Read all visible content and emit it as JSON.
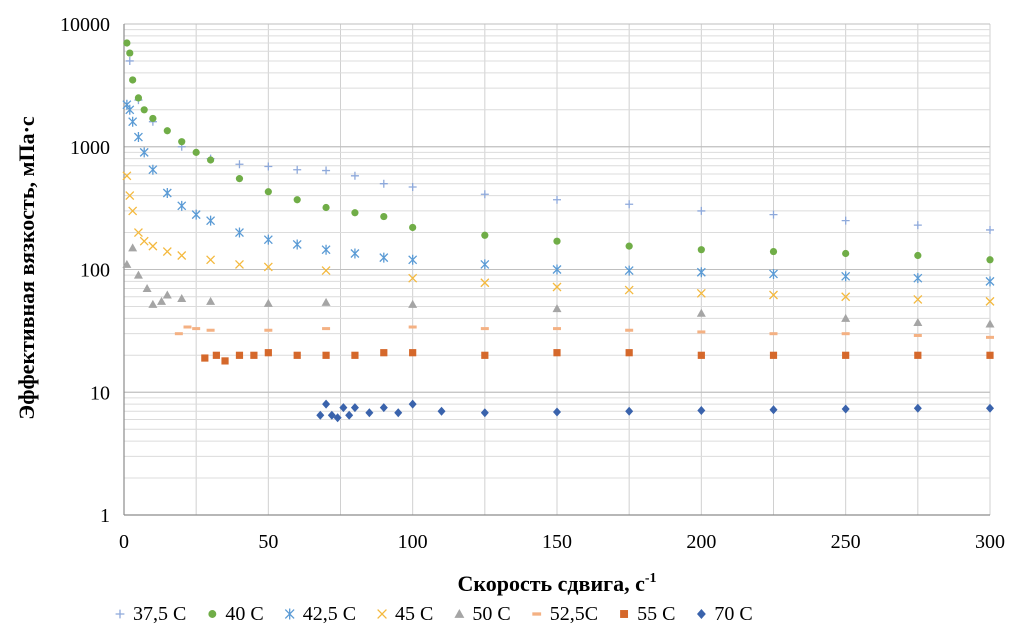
{
  "chart_data": {
    "type": "scatter",
    "title": "",
    "xlabel": "Скорость сдвига, с",
    "xlabel_superscript": "-1",
    "ylabel": "Эффективная вязкость, мПа·с",
    "xlim": [
      0,
      300
    ],
    "ylim": [
      1,
      10000
    ],
    "y_scale": "log",
    "x_ticks": [
      "0",
      "50",
      "100",
      "150",
      "200",
      "250",
      "300"
    ],
    "y_ticks": [
      "1",
      "10",
      "100",
      "1000",
      "10000"
    ],
    "grid": true,
    "legend_position": "bottom",
    "series": [
      {
        "name": "37,5 C",
        "marker": "plus",
        "color": "#8EA9DB",
        "x": [
          2,
          5,
          10,
          20,
          30,
          40,
          50,
          60,
          70,
          80,
          90,
          100,
          125,
          150,
          175,
          200,
          225,
          250,
          275,
          300
        ],
        "y": [
          5000,
          2400,
          1600,
          1000,
          800,
          720,
          690,
          650,
          640,
          580,
          500,
          470,
          410,
          370,
          340,
          300,
          280,
          250,
          230,
          210
        ]
      },
      {
        "name": "40 С",
        "marker": "circle",
        "color": "#70AD47",
        "x": [
          1,
          2,
          3,
          5,
          7,
          10,
          15,
          20,
          25,
          30,
          40,
          50,
          60,
          70,
          80,
          90,
          100,
          125,
          150,
          175,
          200,
          225,
          250,
          275,
          300
        ],
        "y": [
          7000,
          5800,
          3500,
          2500,
          2000,
          1700,
          1350,
          1100,
          900,
          780,
          550,
          430,
          370,
          320,
          290,
          270,
          220,
          190,
          170,
          155,
          145,
          140,
          135,
          130,
          120
        ]
      },
      {
        "name": "42,5 С",
        "marker": "asterisk",
        "color": "#5B9BD5",
        "x": [
          1,
          2,
          3,
          5,
          7,
          10,
          15,
          20,
          25,
          30,
          40,
          50,
          60,
          70,
          80,
          90,
          100,
          125,
          150,
          175,
          200,
          225,
          250,
          275,
          300
        ],
        "y": [
          2200,
          2000,
          1600,
          1200,
          900,
          650,
          420,
          330,
          280,
          250,
          200,
          175,
          160,
          145,
          135,
          125,
          120,
          110,
          100,
          98,
          95,
          92,
          88,
          85,
          80
        ]
      },
      {
        "name": "45 С",
        "marker": "x",
        "color": "#F4B93E",
        "x": [
          1,
          2,
          3,
          5,
          7,
          10,
          15,
          20,
          30,
          40,
          50,
          70,
          100,
          125,
          150,
          175,
          200,
          225,
          250,
          275,
          300
        ],
        "y": [
          580,
          400,
          300,
          200,
          170,
          155,
          140,
          130,
          120,
          110,
          105,
          98,
          85,
          78,
          72,
          68,
          64,
          62,
          60,
          57,
          55
        ]
      },
      {
        "name": "50 С",
        "marker": "triangle",
        "color": "#A5A5A5",
        "x": [
          1,
          3,
          5,
          8,
          10,
          13,
          15,
          20,
          30,
          50,
          70,
          100,
          150,
          200,
          250,
          275,
          300
        ],
        "y": [
          110,
          150,
          90,
          70,
          52,
          55,
          62,
          58,
          55,
          53,
          54,
          52,
          48,
          44,
          40,
          37,
          36
        ]
      },
      {
        "name": "52,5С",
        "marker": "dash",
        "color": "#F4B183",
        "x": [
          19,
          22,
          25,
          30,
          50,
          70,
          100,
          125,
          150,
          175,
          200,
          225,
          250,
          275,
          300
        ],
        "y": [
          30,
          34,
          33,
          32,
          32,
          33,
          34,
          33,
          33,
          32,
          31,
          30,
          30,
          29,
          28
        ]
      },
      {
        "name": "55 С",
        "marker": "square",
        "color": "#D5682B",
        "x": [
          28,
          32,
          35,
          40,
          45,
          50,
          60,
          70,
          80,
          90,
          100,
          125,
          150,
          175,
          200,
          225,
          250,
          275,
          300
        ],
        "y": [
          19,
          20,
          18,
          20,
          20,
          21,
          20,
          20,
          20,
          21,
          21,
          20,
          21,
          21,
          20,
          20,
          20,
          20,
          20
        ]
      },
      {
        "name": "70 С",
        "marker": "diamond",
        "color": "#3A63AC",
        "x": [
          68,
          70,
          72,
          74,
          76,
          78,
          80,
          85,
          90,
          95,
          100,
          110,
          125,
          150,
          175,
          200,
          225,
          250,
          275,
          300
        ],
        "y": [
          6.5,
          8,
          6.5,
          6.2,
          7.5,
          6.5,
          7.5,
          6.8,
          7.5,
          6.8,
          8,
          7,
          6.8,
          6.9,
          7,
          7.1,
          7.2,
          7.3,
          7.4,
          7.4
        ]
      }
    ]
  }
}
